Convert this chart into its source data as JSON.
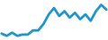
{
  "x": [
    0,
    1,
    2,
    3,
    4,
    5,
    6,
    7,
    8,
    9,
    10,
    11,
    12,
    13,
    14,
    15,
    16,
    17,
    18,
    19,
    20
  ],
  "y": [
    3.5,
    2.8,
    3.8,
    2.8,
    3.2,
    3.2,
    4.5,
    4.5,
    6.5,
    9.5,
    11.5,
    9.0,
    10.5,
    8.5,
    10.0,
    8.0,
    9.5,
    7.5,
    10.5,
    12.5,
    11.0
  ],
  "line_color": "#2196c8",
  "linewidth": 2.0,
  "background_color": "#ffffff",
  "ylim": [
    1.5,
    14.0
  ],
  "xlim": [
    -0.3,
    20.3
  ]
}
